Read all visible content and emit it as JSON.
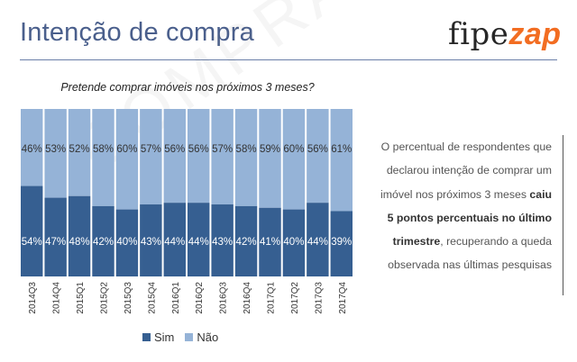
{
  "header": {
    "title": "Intenção de compra"
  },
  "logo": {
    "part1": "fipe",
    "part2": "zap"
  },
  "watermark": {
    "text": "COMPRA LARGO"
  },
  "chart_data": {
    "type": "bar",
    "stacked": "percent",
    "title": "Pretende comprar imóveis nos próximos 3 meses?",
    "categories": [
      "2014Q3",
      "2014Q4",
      "2015Q1",
      "2015Q2",
      "2015Q3",
      "2015Q4",
      "2016Q1",
      "2016Q2",
      "2016Q3",
      "2016Q4",
      "2017Q1",
      "2017Q2",
      "2017Q3",
      "2017Q4"
    ],
    "series": [
      {
        "name": "Sim",
        "color": "#365f91",
        "values": [
          54,
          47,
          48,
          42,
          40,
          43,
          44,
          44,
          43,
          42,
          41,
          40,
          44,
          39
        ]
      },
      {
        "name": "Não",
        "color": "#95b3d7",
        "values": [
          46,
          53,
          52,
          58,
          60,
          57,
          56,
          56,
          57,
          58,
          59,
          60,
          56,
          61
        ]
      }
    ],
    "value_suffix": "%",
    "ylim": [
      0,
      100
    ],
    "legend": "bottom",
    "grid": false
  },
  "note": {
    "part1": "O percentual de respondentes que declarou intenção de comprar um imóvel nos próximos 3 meses ",
    "bold": "caiu 5 pontos percentuais no último trimestre",
    "part2": ", recuperando a queda observada nas últimas pesquisas"
  }
}
